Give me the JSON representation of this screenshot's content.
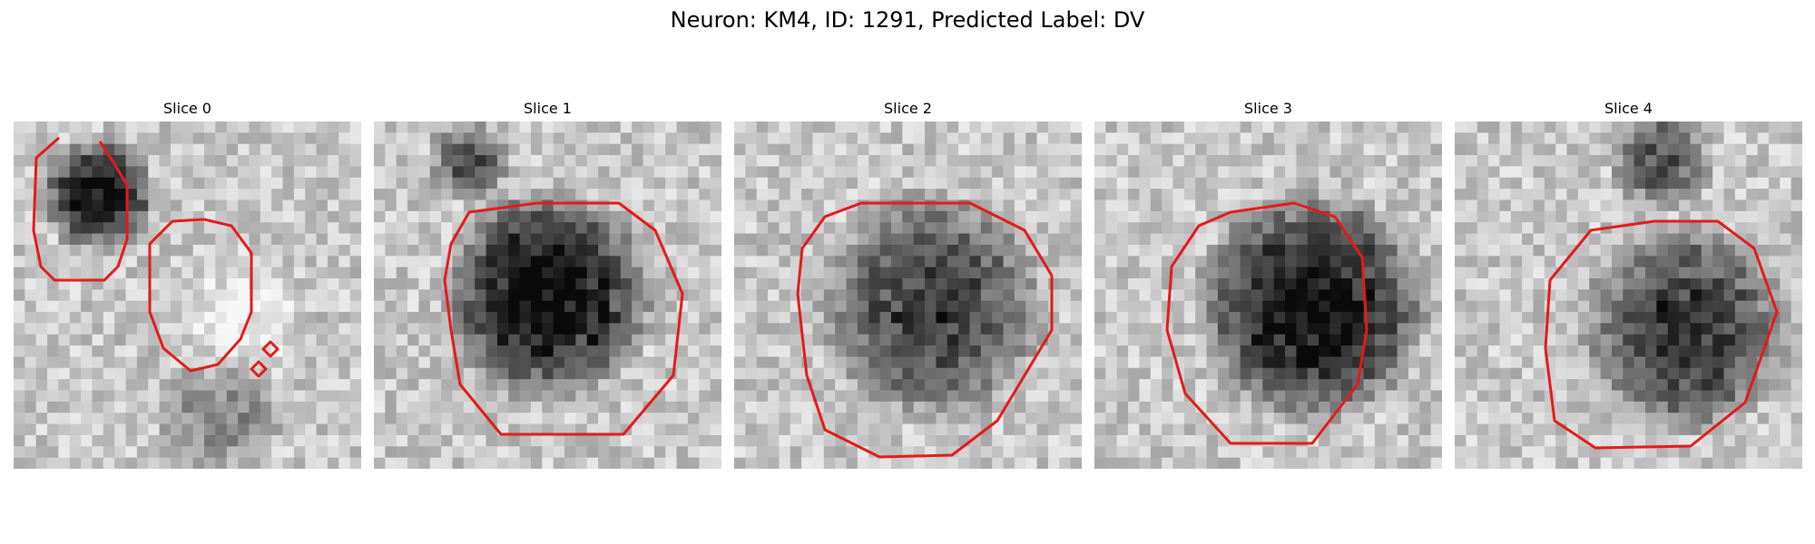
{
  "figure": {
    "title": "Neuron: KM4, ID: 1291, Predicted Label: DV"
  },
  "slices": [
    {
      "label": "Slice 0",
      "shading": "two-blobs"
    },
    {
      "label": "Slice 1",
      "shading": "dark-blob"
    },
    {
      "label": "Slice 2",
      "shading": "medium-blob"
    },
    {
      "label": "Slice 3",
      "shading": "dark-blob"
    },
    {
      "label": "Slice 4",
      "shading": "medium-blob"
    }
  ],
  "colors": {
    "contour": "#e41a1c",
    "background": "#ffffff"
  }
}
